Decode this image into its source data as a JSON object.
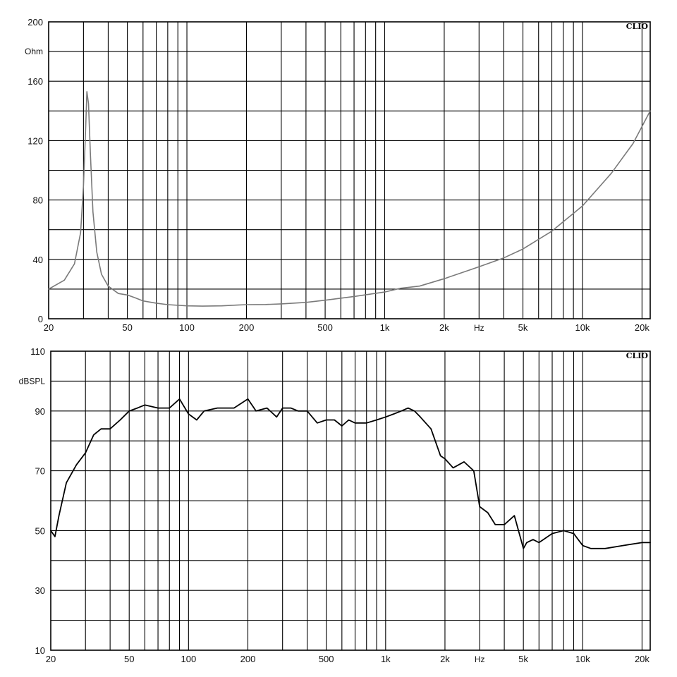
{
  "chart_data": [
    {
      "type": "line",
      "brand": "CLIO",
      "ylabel": "Ohm",
      "xlabel": "Hz",
      "x_scale": "log",
      "xlim": [
        20,
        22000
      ],
      "ylim": [
        0,
        200
      ],
      "y_ticks": [
        "0",
        "40",
        "80",
        "120",
        "160",
        "200"
      ],
      "y_tick_values": [
        0,
        40,
        80,
        120,
        160,
        200
      ],
      "x_ticks": [
        "20",
        "50",
        "100",
        "200",
        "500",
        "1k",
        "2k",
        "Hz",
        "5k",
        "10k",
        "20k"
      ],
      "x_tick_values": [
        20,
        50,
        100,
        200,
        500,
        1000,
        2000,
        3000,
        5000,
        10000,
        20000
      ],
      "line_color": "#7a7a7a",
      "series": [
        {
          "x": [
            20,
            24,
            27,
            29,
            30,
            30.8,
            31.2,
            31.8,
            32.5,
            33.5,
            35,
            37,
            40,
            45,
            50,
            55,
            60,
            70,
            80,
            100,
            120,
            150,
            180,
            200,
            250,
            300,
            400,
            500,
            700,
            1000,
            1200,
            1500,
            2000,
            3000,
            4000,
            5000,
            7000,
            10000,
            14000,
            18000,
            22000
          ],
          "y": [
            20,
            26,
            37,
            58,
            90,
            130,
            153,
            145,
            112,
            72,
            45,
            30,
            22,
            17,
            16,
            14,
            12,
            10.5,
            9.5,
            8.7,
            8.5,
            8.7,
            9.2,
            9.5,
            9.6,
            10,
            11,
            12.5,
            15,
            18,
            20.5,
            22,
            27,
            35,
            41,
            47,
            59,
            76,
            98,
            118,
            140
          ]
        }
      ]
    },
    {
      "type": "line",
      "brand": "CLIO",
      "ylabel": "dBSPL",
      "xlabel": "Hz",
      "x_scale": "log",
      "xlim": [
        20,
        22000
      ],
      "ylim": [
        10,
        110
      ],
      "y_ticks": [
        "10",
        "30",
        "50",
        "70",
        "90",
        "110"
      ],
      "y_tick_values": [
        10,
        30,
        50,
        70,
        90,
        110
      ],
      "x_ticks": [
        "20",
        "50",
        "100",
        "200",
        "500",
        "1k",
        "2k",
        "Hz",
        "5k",
        "10k",
        "20k"
      ],
      "x_tick_values": [
        20,
        50,
        100,
        200,
        500,
        1000,
        2000,
        3000,
        5000,
        10000,
        20000
      ],
      "line_color": "#000000",
      "series": [
        {
          "x": [
            20,
            21,
            22,
            24,
            27,
            30,
            33,
            36,
            40,
            45,
            50,
            55,
            60,
            70,
            80,
            90,
            100,
            110,
            120,
            140,
            170,
            200,
            220,
            250,
            280,
            300,
            330,
            360,
            400,
            450,
            500,
            550,
            600,
            650,
            700,
            800,
            900,
            1000,
            1100,
            1200,
            1300,
            1400,
            1500,
            1700,
            1900,
            2000,
            2200,
            2500,
            2800,
            3000,
            3300,
            3600,
            4000,
            4500,
            5000,
            5200,
            5600,
            6000,
            7000,
            8000,
            9000,
            10000,
            11000,
            13000,
            16000,
            20000,
            22000
          ],
          "y": [
            50,
            48,
            55,
            66,
            72,
            76,
            82,
            84,
            84,
            87,
            90,
            91,
            92,
            91,
            91,
            94,
            89,
            87,
            90,
            91,
            91,
            94,
            90,
            91,
            88,
            91,
            91,
            90,
            90,
            86,
            87,
            87,
            85,
            87,
            86,
            86,
            87,
            88,
            89,
            90,
            91,
            90,
            88,
            84,
            75,
            74,
            71,
            73,
            70,
            58,
            56,
            52,
            52,
            55,
            44,
            46,
            47,
            46,
            49,
            50,
            49,
            45,
            44,
            44,
            45,
            46,
            46
          ]
        }
      ]
    }
  ]
}
